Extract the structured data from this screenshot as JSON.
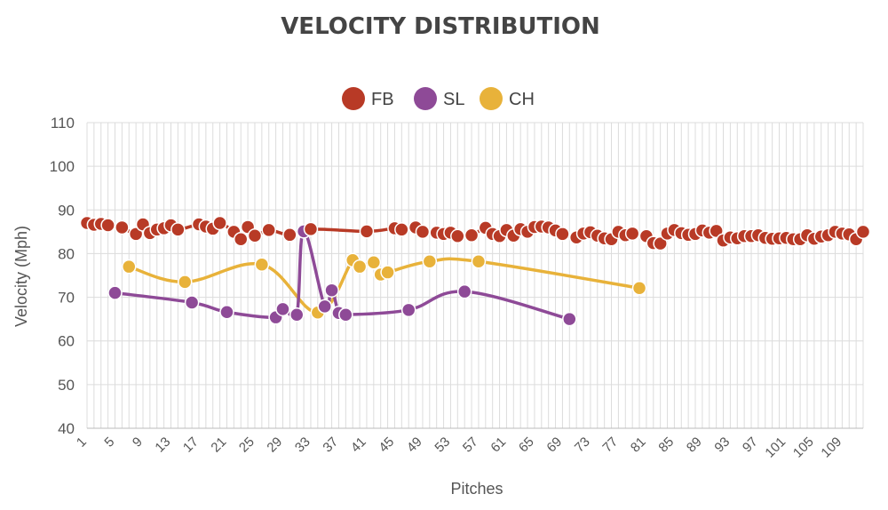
{
  "chart_data": {
    "type": "line",
    "title": "VELOCITY DISTRIBUTION",
    "xlabel": "Pitches",
    "ylabel": "Velocity (Mph)",
    "ylim": [
      40,
      110
    ],
    "yticks": [
      40,
      50,
      60,
      70,
      80,
      90,
      100,
      110
    ],
    "xlim": [
      1,
      112
    ],
    "xticks": [
      1,
      5,
      9,
      13,
      17,
      21,
      25,
      29,
      33,
      37,
      41,
      45,
      49,
      53,
      57,
      61,
      65,
      69,
      73,
      77,
      81,
      85,
      89,
      93,
      97,
      101,
      105,
      109
    ],
    "grid": true,
    "legend_position": "top-center",
    "series": [
      {
        "name": "FB",
        "color": "#B83A26",
        "points": [
          [
            1,
            87
          ],
          [
            2,
            86.6
          ],
          [
            3,
            86.8
          ],
          [
            4,
            86.5
          ],
          [
            6,
            86
          ],
          [
            8,
            84.5
          ],
          [
            9,
            86.7
          ],
          [
            10,
            84.7
          ],
          [
            11,
            85.5
          ],
          [
            12,
            85.8
          ],
          [
            13,
            86.5
          ],
          [
            14,
            85.5
          ],
          [
            17,
            86.7
          ],
          [
            18,
            86.2
          ],
          [
            19,
            85.7
          ],
          [
            20,
            87
          ],
          [
            22,
            85
          ],
          [
            23,
            83.3
          ],
          [
            24,
            86.1
          ],
          [
            25,
            84.1
          ],
          [
            27,
            85.4
          ],
          [
            30,
            84.3
          ],
          [
            33,
            85.6
          ],
          [
            41,
            85.1
          ],
          [
            45,
            85.8
          ],
          [
            46,
            85.5
          ],
          [
            48,
            86
          ],
          [
            49,
            85
          ],
          [
            51,
            84.8
          ],
          [
            52,
            84.5
          ],
          [
            53,
            84.8
          ],
          [
            54,
            84
          ],
          [
            56,
            84.2
          ],
          [
            58,
            85.9
          ],
          [
            59,
            84.5
          ],
          [
            60,
            84
          ],
          [
            61,
            85.4
          ],
          [
            62,
            84.1
          ],
          [
            63,
            85.6
          ],
          [
            64,
            85
          ],
          [
            65,
            86.1
          ],
          [
            66,
            86.2
          ],
          [
            67,
            86
          ],
          [
            68,
            85.3
          ],
          [
            69,
            84.5
          ],
          [
            71,
            83.7
          ],
          [
            72,
            84.6
          ],
          [
            73,
            84.9
          ],
          [
            74,
            84.1
          ],
          [
            75,
            83.5
          ],
          [
            76,
            83.3
          ],
          [
            77,
            85
          ],
          [
            78,
            84.2
          ],
          [
            79,
            84.6
          ],
          [
            81,
            84
          ],
          [
            82,
            82.4
          ],
          [
            83,
            82.3
          ],
          [
            84,
            84.6
          ],
          [
            85,
            85.4
          ],
          [
            86,
            84.7
          ],
          [
            87,
            84.3
          ],
          [
            88,
            84.5
          ],
          [
            89,
            85.3
          ],
          [
            90,
            84.8
          ],
          [
            91,
            85.2
          ],
          [
            92,
            83
          ],
          [
            93,
            83.7
          ],
          [
            94,
            83.5
          ],
          [
            95,
            84
          ],
          [
            96,
            84
          ],
          [
            97,
            84.2
          ],
          [
            98,
            83.6
          ],
          [
            99,
            83.4
          ],
          [
            100,
            83.5
          ],
          [
            101,
            83.6
          ],
          [
            102,
            83.3
          ],
          [
            103,
            83.3
          ],
          [
            104,
            84.2
          ],
          [
            105,
            83.4
          ],
          [
            106,
            83.9
          ],
          [
            107,
            84.2
          ],
          [
            108,
            85
          ],
          [
            109,
            84.6
          ],
          [
            110,
            84.4
          ],
          [
            111,
            83.3
          ],
          [
            112,
            85
          ]
        ]
      },
      {
        "name": "SL",
        "color": "#8E4A97",
        "points": [
          [
            5,
            71
          ],
          [
            16,
            68.8
          ],
          [
            21,
            66.6
          ],
          [
            28,
            65.4
          ],
          [
            29,
            67.3
          ],
          [
            31,
            66
          ],
          [
            32,
            85.1
          ],
          [
            35,
            67.9
          ],
          [
            36,
            71.6
          ],
          [
            37,
            66.4
          ],
          [
            38,
            66
          ],
          [
            47,
            67.1
          ],
          [
            55,
            71.3
          ],
          [
            70,
            65
          ]
        ]
      },
      {
        "name": "CH",
        "color": "#E8B23A",
        "points": [
          [
            7,
            77
          ],
          [
            15,
            73.5
          ],
          [
            26,
            77.5
          ],
          [
            34,
            66.5
          ],
          [
            39,
            78.5
          ],
          [
            40,
            77
          ],
          [
            42,
            78
          ],
          [
            43,
            75.2
          ],
          [
            44,
            75.7
          ],
          [
            50,
            78.2
          ],
          [
            57,
            78.2
          ],
          [
            80,
            72.1
          ]
        ]
      }
    ]
  }
}
